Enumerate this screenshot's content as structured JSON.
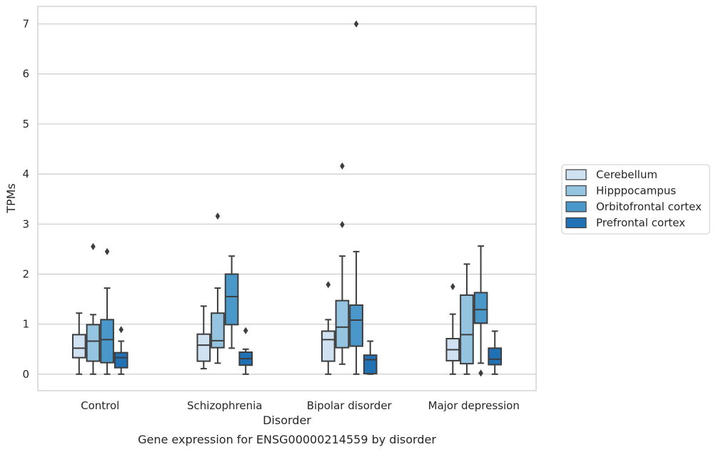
{
  "chart_data": {
    "type": "box",
    "title": "",
    "caption": "Gene expression for ENSG00000214559 by disorder",
    "xlabel": "Disorder",
    "ylabel": "TPMs",
    "ylim": [
      -0.33,
      7.35
    ],
    "yticks": [
      0,
      1,
      2,
      3,
      4,
      5,
      6,
      7
    ],
    "grid": "horizontal",
    "legend_position": "right",
    "categories": [
      "Control",
      "Schizophrenia",
      "Bipolar disorder",
      "Major depression"
    ],
    "series": [
      {
        "name": "Cerebellum",
        "color": "#d0e1f2",
        "boxes": [
          {
            "q1": 0.33,
            "median": 0.52,
            "q3": 0.79,
            "whislo": 0.0,
            "whishi": 1.22,
            "fliers": []
          },
          {
            "q1": 0.26,
            "median": 0.58,
            "q3": 0.8,
            "whislo": 0.11,
            "whishi": 1.36,
            "fliers": []
          },
          {
            "q1": 0.26,
            "median": 0.69,
            "q3": 0.86,
            "whislo": 0.0,
            "whishi": 1.09,
            "fliers": [
              1.79
            ]
          },
          {
            "q1": 0.27,
            "median": 0.49,
            "q3": 0.71,
            "whislo": 0.0,
            "whishi": 1.2,
            "fliers": [
              1.75
            ]
          }
        ]
      },
      {
        "name": "Hipppocampus",
        "color": "#94c4df",
        "boxes": [
          {
            "q1": 0.26,
            "median": 0.66,
            "q3": 0.99,
            "whislo": 0.0,
            "whishi": 1.19,
            "fliers": [
              2.55
            ]
          },
          {
            "q1": 0.53,
            "median": 0.67,
            "q3": 1.22,
            "whislo": 0.22,
            "whishi": 1.72,
            "fliers": [
              3.16
            ]
          },
          {
            "q1": 0.53,
            "median": 0.94,
            "q3": 1.47,
            "whislo": 0.2,
            "whishi": 2.36,
            "fliers": [
              2.99,
              4.16
            ]
          },
          {
            "q1": 0.21,
            "median": 0.79,
            "q3": 1.58,
            "whislo": 0.0,
            "whishi": 2.2,
            "fliers": []
          }
        ]
      },
      {
        "name": "Orbitofrontal cortex",
        "color": "#4a98c9",
        "boxes": [
          {
            "q1": 0.23,
            "median": 0.69,
            "q3": 1.09,
            "whislo": 0.0,
            "whishi": 1.72,
            "fliers": [
              2.45
            ]
          },
          {
            "q1": 0.99,
            "median": 1.55,
            "q3": 2.0,
            "whislo": 0.52,
            "whishi": 2.36,
            "fliers": []
          },
          {
            "q1": 0.56,
            "median": 1.08,
            "q3": 1.38,
            "whislo": 0.0,
            "whishi": 2.45,
            "fliers": [
              7.0
            ]
          },
          {
            "q1": 1.02,
            "median": 1.29,
            "q3": 1.63,
            "whislo": 0.22,
            "whishi": 2.56,
            "fliers": [
              0.02
            ]
          }
        ]
      },
      {
        "name": "Prefrontal cortex",
        "color": "#2171b5",
        "boxes": [
          {
            "q1": 0.13,
            "median": 0.33,
            "q3": 0.43,
            "whislo": 0.0,
            "whishi": 0.66,
            "fliers": [
              0.89
            ]
          },
          {
            "q1": 0.18,
            "median": 0.31,
            "q3": 0.44,
            "whislo": 0.0,
            "whishi": 0.5,
            "fliers": [
              0.87
            ]
          },
          {
            "q1": 0.01,
            "median": 0.29,
            "q3": 0.38,
            "whislo": 0.0,
            "whishi": 0.66,
            "fliers": []
          },
          {
            "q1": 0.19,
            "median": 0.3,
            "q3": 0.52,
            "whislo": 0.0,
            "whishi": 0.86,
            "fliers": []
          }
        ]
      }
    ]
  }
}
